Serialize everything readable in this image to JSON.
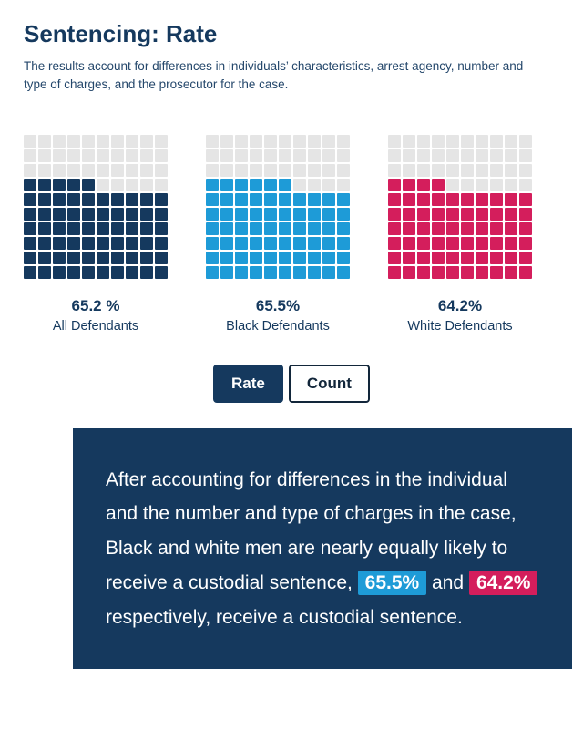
{
  "header": {
    "title": "Sentencing: Rate",
    "subtitle": "The results account for differences in individuals’ characteristics, arrest agency, number and type of charges, and the prosecutor for the case."
  },
  "colors": {
    "navy": "#15395e",
    "blue": "#1e9bd7",
    "crimson": "#d41e5c",
    "empty": "#e5e5e5"
  },
  "chart_data": {
    "type": "waffle",
    "grid": {
      "rows": 10,
      "cols": 10
    },
    "fill_order": "bottom-left, row by row",
    "empty_color": "#e5e5e5",
    "series": [
      {
        "name": "All Defendants",
        "value": 65.2,
        "label": "65.2 %",
        "color": "#15395e"
      },
      {
        "name": "Black Defendants",
        "value": 65.5,
        "label": "65.5%",
        "color": "#1e9bd7"
      },
      {
        "name": "White Defendants",
        "value": 64.2,
        "label": "64.2%",
        "color": "#d41e5c"
      }
    ]
  },
  "toggle": {
    "rate_label": "Rate",
    "count_label": "Count",
    "active": "Rate"
  },
  "info_box": {
    "background": "#15395e",
    "segments": [
      {
        "text": "After accounting for differences in the individual and the number and type of charges in the case, Black and white men are nearly equally likely to receive a custodial sentence, ",
        "highlight": null
      },
      {
        "text": "65.5%",
        "highlight": "#1e9bd7"
      },
      {
        "text": " and ",
        "highlight": null
      },
      {
        "text": "64.2%",
        "highlight": "#d41e5c"
      },
      {
        "text": " respectively, receive a custodial sentence.",
        "highlight": null
      }
    ]
  }
}
